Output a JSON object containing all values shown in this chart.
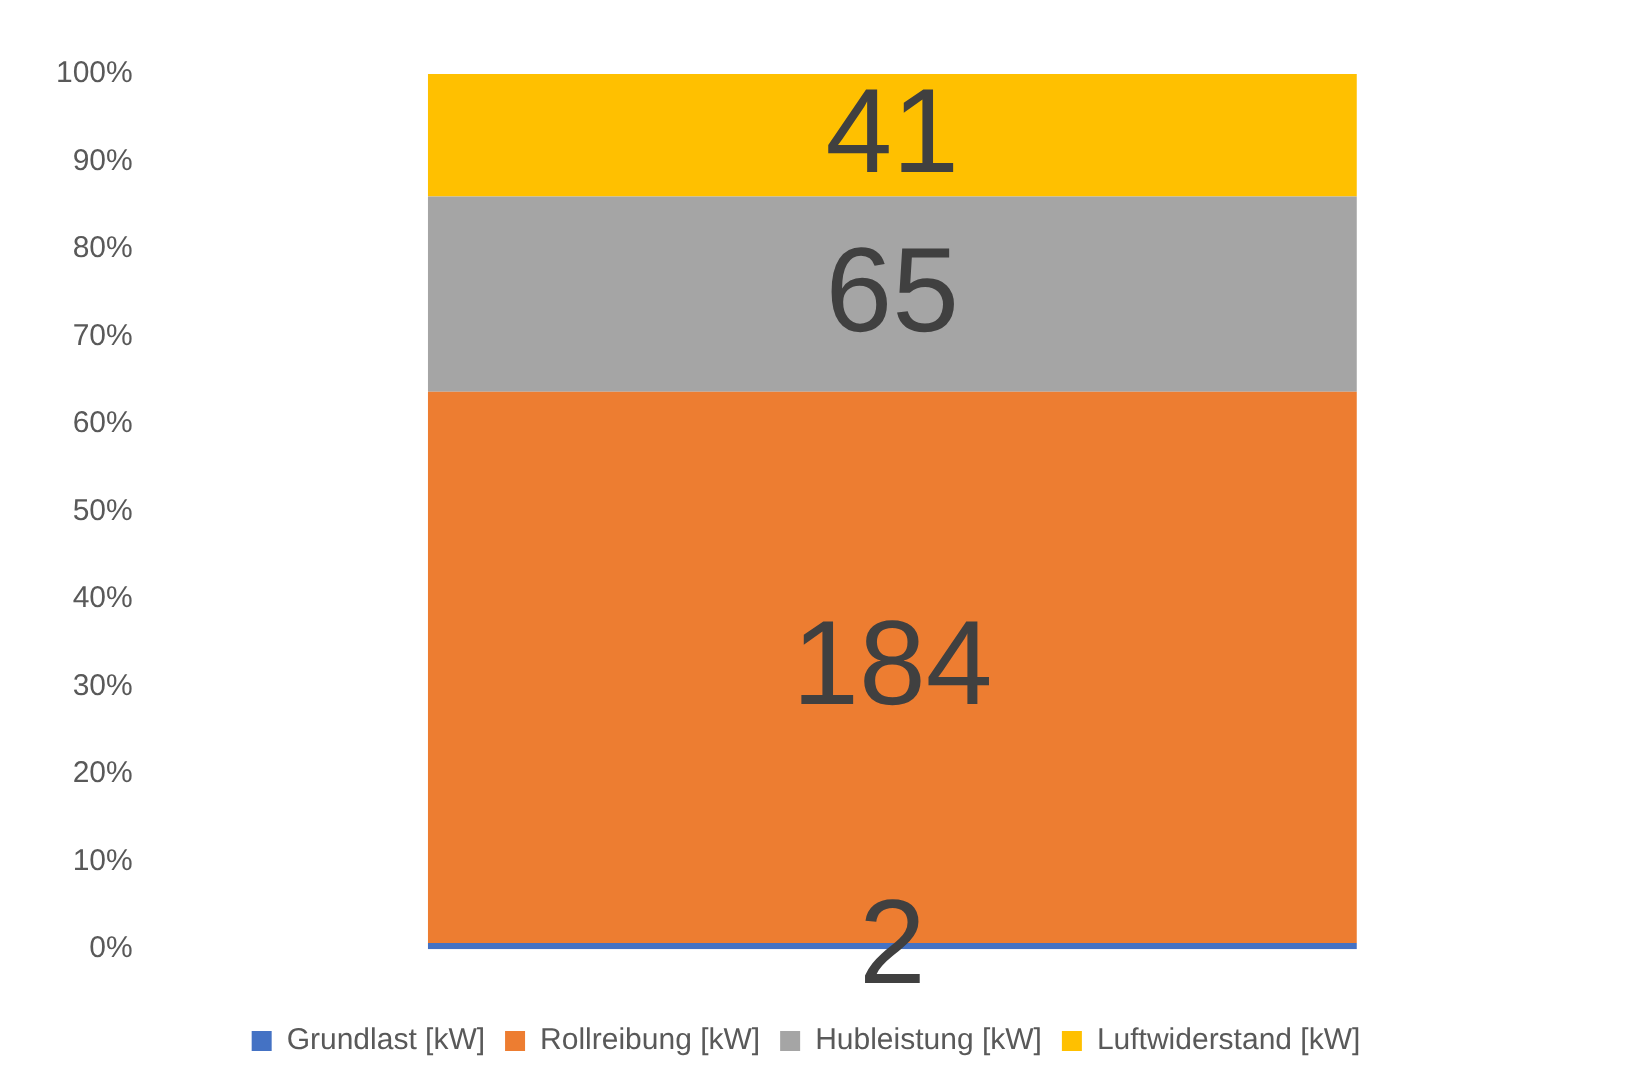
{
  "chart_data": {
    "type": "bar",
    "stacked": true,
    "categories": [
      null
    ],
    "ylim": [
      0,
      100
    ],
    "yticks": [
      {
        "value": 0,
        "label": "0%"
      },
      {
        "value": 10,
        "label": "10%"
      },
      {
        "value": 20,
        "label": "20%"
      },
      {
        "value": 30,
        "label": "30%"
      },
      {
        "value": 40,
        "label": "40%"
      },
      {
        "value": 50,
        "label": "50%"
      },
      {
        "value": 60,
        "label": "60%"
      },
      {
        "value": 70,
        "label": "70%"
      },
      {
        "value": 80,
        "label": "80%"
      },
      {
        "value": 90,
        "label": "90%"
      },
      {
        "value": 100,
        "label": "100%"
      }
    ],
    "grid": false,
    "legend": "bottom",
    "annotations": [
      "2",
      "184",
      "65",
      "41"
    ],
    "series": [
      {
        "name": "Grundlast [kW]",
        "color": "#4472c4",
        "values": [
          0.7
        ]
      },
      {
        "name": "Rollreibung [kW]",
        "color": "#ed7d31",
        "values": [
          63.0
        ]
      },
      {
        "name": "Hubleistung [kW]",
        "color": "#a5a5a5",
        "values": [
          22.3
        ]
      },
      {
        "name": "Luftwiderstand [kW]",
        "color": "#ffc000",
        "values": [
          14.0
        ]
      }
    ]
  }
}
